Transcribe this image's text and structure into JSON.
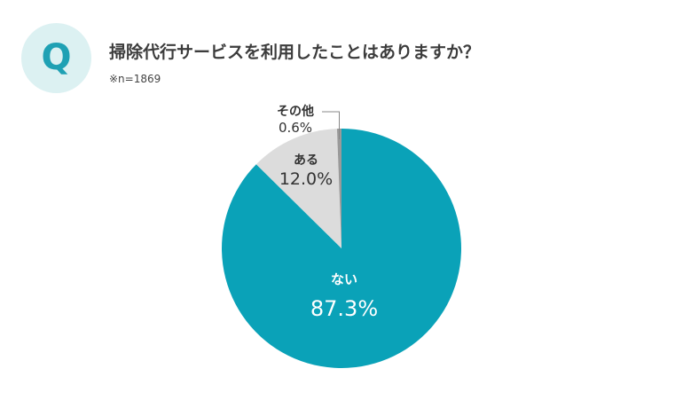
{
  "header": {
    "badge_letter": "Q",
    "title": "掃除代行サービスを利用したことはありますか？",
    "note": "※n=1869"
  },
  "colors": {
    "badge_bg": "#dcf1f2",
    "badge_text": "#1fa1b4",
    "slice_nai": "#0aa2b8",
    "slice_aru": "#dcdcdc",
    "slice_other": "#9a9a9a"
  },
  "chart_data": {
    "type": "pie",
    "n": 1869,
    "start": "12 o'clock",
    "direction": "clockwise",
    "slices": [
      {
        "label": "ない",
        "value_label": "87.3%",
        "value": 87.3,
        "color": "#0aa2b8"
      },
      {
        "label": "ある",
        "value_label": "12.0%",
        "value": 12.0,
        "color": "#dcdcdc"
      },
      {
        "label": "その他",
        "value_label": "0.6%",
        "value": 0.6,
        "color": "#9a9a9a"
      }
    ]
  }
}
